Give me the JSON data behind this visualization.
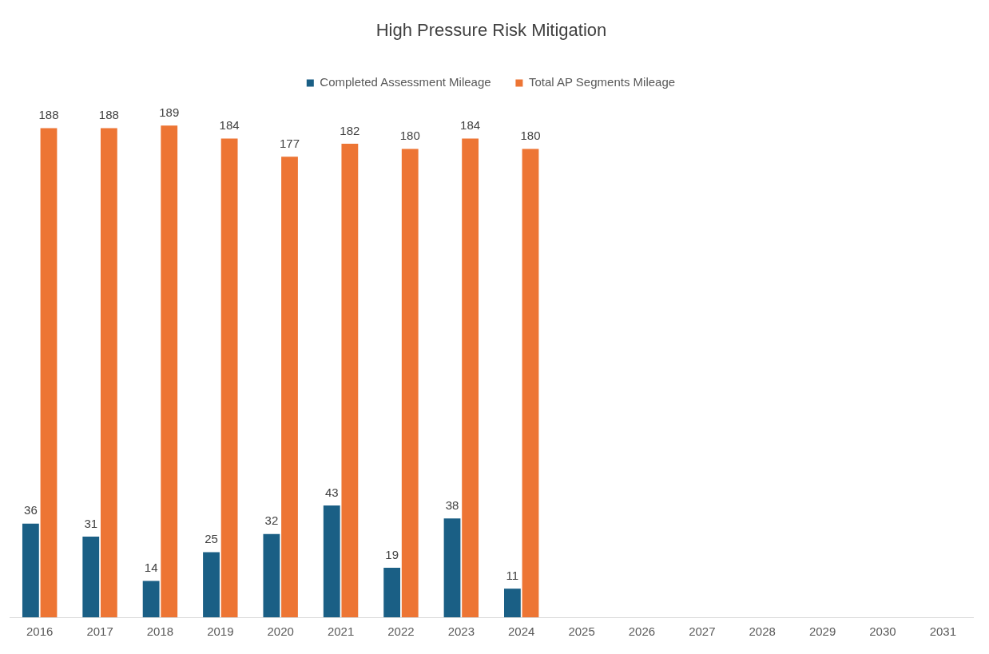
{
  "chart_data": {
    "type": "bar",
    "title": "High Pressure Risk Mitigation",
    "categories": [
      "2016",
      "2017",
      "2018",
      "2019",
      "2020",
      "2021",
      "2022",
      "2023",
      "2024",
      "2025",
      "2026",
      "2027",
      "2028",
      "2029",
      "2030",
      "2031"
    ],
    "series": [
      {
        "name": "Completed Assessment Mileage",
        "color": "#1a5f85",
        "values": [
          36,
          31,
          14,
          25,
          32,
          43,
          19,
          38,
          11,
          null,
          null,
          null,
          null,
          null,
          null,
          null
        ]
      },
      {
        "name": "Total AP Segments Mileage",
        "color": "#ed7534",
        "values": [
          188,
          188,
          189,
          184,
          177,
          182,
          180,
          184,
          180,
          null,
          null,
          null,
          null,
          null,
          null,
          null
        ]
      }
    ],
    "data_labels": true,
    "legend": "top",
    "grid": false,
    "tick_labels": "x"
  }
}
